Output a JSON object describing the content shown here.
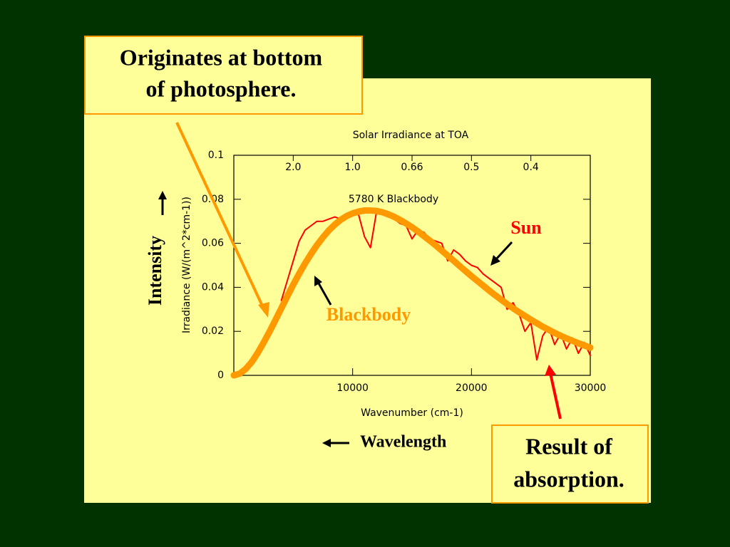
{
  "chart_data": {
    "type": "line",
    "title": "Solar Irradiance at TOA",
    "subtitle": "5780 K Blackbody",
    "xlabel": "Wavenumber (cm-1)",
    "ylabel": "Irradiance (W/(m^2*cm-1))",
    "xlim": [
      0,
      30000
    ],
    "ylim": [
      0,
      0.1
    ],
    "xticks": [
      10000,
      20000,
      30000
    ],
    "yticks": [
      0,
      0.02,
      0.04,
      0.06,
      0.08,
      0.1
    ],
    "x2ticks": [
      {
        "value": 5000,
        "label": "2.0"
      },
      {
        "value": 10000,
        "label": "1.0"
      },
      {
        "value": 15000,
        "label": "0.66"
      },
      {
        "value": 20000,
        "label": "0.5"
      },
      {
        "value": 25000,
        "label": "0.4"
      }
    ],
    "x": [
      0,
      500,
      1000,
      1500,
      2000,
      2500,
      3000,
      3500,
      4000,
      4500,
      5000,
      5500,
      6000,
      6500,
      7000,
      7500,
      8000,
      8500,
      9000,
      9500,
      10000,
      10500,
      11000,
      11500,
      12000,
      12500,
      13000,
      13500,
      14000,
      14500,
      15000,
      15500,
      16000,
      16500,
      17000,
      17500,
      18000,
      18500,
      19000,
      19500,
      20000,
      20500,
      21000,
      21500,
      22000,
      22500,
      23000,
      23500,
      24000,
      24500,
      25000,
      25500,
      26000,
      26500,
      27000,
      27500,
      28000,
      28500,
      29000,
      29500,
      30000
    ],
    "series": [
      {
        "name": "Sun",
        "color": "#ff0000",
        "values": [
          null,
          null,
          null,
          null,
          null,
          null,
          null,
          null,
          0.034,
          0.043,
          0.052,
          0.061,
          0.066,
          0.068,
          0.07,
          0.07,
          0.071,
          0.072,
          0.071,
          0.073,
          0.074,
          0.073,
          0.063,
          0.058,
          0.074,
          0.073,
          0.072,
          0.071,
          0.069,
          0.068,
          0.062,
          0.066,
          0.065,
          0.062,
          0.061,
          0.06,
          0.052,
          0.057,
          0.055,
          0.052,
          0.05,
          0.049,
          0.046,
          0.044,
          0.042,
          0.04,
          0.03,
          0.033,
          0.028,
          0.02,
          0.024,
          0.007,
          0.018,
          0.022,
          0.014,
          0.019,
          0.012,
          0.017,
          0.01,
          0.015,
          0.009
        ]
      },
      {
        "name": "Blackbody",
        "color": "#ff9900",
        "values": [
          0,
          0.0008,
          0.0029,
          0.006,
          0.0101,
          0.0148,
          0.0198,
          0.0251,
          0.0305,
          0.0359,
          0.0412,
          0.0462,
          0.0509,
          0.0552,
          0.0592,
          0.0627,
          0.0659,
          0.0685,
          0.0707,
          0.0724,
          0.0736,
          0.0744,
          0.0749,
          0.0749,
          0.0747,
          0.0741,
          0.0732,
          0.072,
          0.0706,
          0.069,
          0.0673,
          0.0654,
          0.0633,
          0.0612,
          0.059,
          0.0567,
          0.0544,
          0.0521,
          0.0497,
          0.0474,
          0.0451,
          0.0429,
          0.0407,
          0.0385,
          0.0364,
          0.0344,
          0.0324,
          0.0305,
          0.0287,
          0.027,
          0.0253,
          0.0237,
          0.0221,
          0.0207,
          0.0193,
          0.018,
          0.0168,
          0.0157,
          0.0146,
          0.0136,
          0.0126
        ]
      }
    ],
    "annotations": {
      "top_box": [
        "Originates at bottom",
        "of photosphere."
      ],
      "bottom_box": [
        "Result of",
        "absorption."
      ],
      "intensity": "Intensity",
      "wavelength": "Wavelength"
    }
  }
}
